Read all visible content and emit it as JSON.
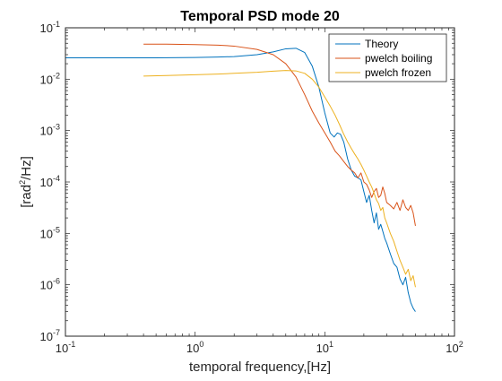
{
  "chart_data": {
    "type": "line",
    "title": "Temporal PSD mode 20",
    "xlabel": "temporal frequency,[Hz]",
    "ylabel": {
      "prefix": "[rad",
      "sup": "2",
      "suffix": "/Hz]"
    },
    "xscale": "log",
    "yscale": "log",
    "xlim": [
      0.1,
      100
    ],
    "ylim": [
      1e-07,
      0.1
    ],
    "x_ticks": [
      {
        "value": 0.1,
        "base": "10",
        "exp": "-1"
      },
      {
        "value": 1,
        "base": "10",
        "exp": "0"
      },
      {
        "value": 10,
        "base": "10",
        "exp": "1"
      },
      {
        "value": 100,
        "base": "10",
        "exp": "2"
      }
    ],
    "y_ticks": [
      {
        "value": 1e-07,
        "base": "10",
        "exp": "-7"
      },
      {
        "value": 1e-06,
        "base": "10",
        "exp": "-6"
      },
      {
        "value": 1e-05,
        "base": "10",
        "exp": "-5"
      },
      {
        "value": 0.0001,
        "base": "10",
        "exp": "-4"
      },
      {
        "value": 0.001,
        "base": "10",
        "exp": "-3"
      },
      {
        "value": 0.01,
        "base": "10",
        "exp": "-2"
      },
      {
        "value": 0.1,
        "base": "10",
        "exp": "-1"
      }
    ],
    "grid": false,
    "legend_position": "top-right",
    "series": [
      {
        "name": "Theory",
        "color": "#0072BD",
        "x": [
          0.1,
          0.2,
          0.5,
          1.0,
          1.5,
          2.0,
          3.0,
          4.0,
          5.0,
          6.0,
          7.0,
          8.0,
          9.0,
          10.0,
          11.0,
          11.8,
          12.5,
          13.2,
          14.0,
          15.0,
          16.0,
          17.0,
          18.0,
          19.0,
          20.0,
          21.0,
          22.0,
          23.0,
          24.0,
          25.0,
          26.0,
          27.0,
          28.0,
          29.0,
          30.0,
          32.0,
          34.0,
          36.0,
          38.0,
          40.0,
          42.0,
          44.0,
          46.0,
          48.0,
          50.0
        ],
        "y": [
          0.026,
          0.026,
          0.026,
          0.0265,
          0.027,
          0.0275,
          0.03,
          0.034,
          0.039,
          0.04,
          0.033,
          0.018,
          0.007,
          0.0022,
          0.0009,
          0.00075,
          0.0009,
          0.00085,
          0.0006,
          0.00028,
          0.00017,
          0.00013,
          0.00012,
          0.00011,
          6.5e-05,
          4e-05,
          5.5e-05,
          2.8e-05,
          1.6e-05,
          2.5e-05,
          1.2e-05,
          1.5e-05,
          1.1e-05,
          8e-06,
          6.5e-06,
          4e-06,
          2.6e-06,
          2.2e-06,
          1.3e-06,
          1e-06,
          1.4e-06,
          7e-07,
          4.5e-07,
          3.5e-07,
          3e-07
        ]
      },
      {
        "name": "pwelch boiling",
        "color": "#D95319",
        "x": [
          0.4,
          0.6,
          1.0,
          1.5,
          2.0,
          3.0,
          4.0,
          5.0,
          6.0,
          7.0,
          8.0,
          9.0,
          10.0,
          11.0,
          12.0,
          13.0,
          14.0,
          15.0,
          16.0,
          17.0,
          18.0,
          19.0,
          20.0,
          21.0,
          22.0,
          23.0,
          24.0,
          25.0,
          26.0,
          27.0,
          28.0,
          29.0,
          30.0,
          32.0,
          34.0,
          36.0,
          38.0,
          40.0,
          42.0,
          44.0,
          46.0,
          48.0,
          50.0
        ],
        "y": [
          0.048,
          0.048,
          0.047,
          0.046,
          0.044,
          0.038,
          0.03,
          0.02,
          0.011,
          0.005,
          0.0024,
          0.0014,
          0.0009,
          0.0006,
          0.0004,
          0.00032,
          0.00025,
          0.0002,
          0.00017,
          0.00015,
          0.00012,
          0.00015,
          0.0001,
          9e-05,
          7e-05,
          5e-05,
          6.5e-05,
          7.5e-05,
          5e-05,
          5.5e-05,
          8e-05,
          6e-05,
          4e-05,
          3.5e-05,
          3e-05,
          4e-05,
          2.8e-05,
          4.5e-05,
          3.2e-05,
          2.8e-05,
          3.5e-05,
          2.5e-05,
          1.4e-05
        ]
      },
      {
        "name": "pwelch frozen",
        "color": "#EDB120",
        "x": [
          0.4,
          0.6,
          1.0,
          1.5,
          2.0,
          3.0,
          4.0,
          5.0,
          6.0,
          7.0,
          8.0,
          9.0,
          10.0,
          11.0,
          12.0,
          13.0,
          14.0,
          15.0,
          16.0,
          17.0,
          18.0,
          19.0,
          20.0,
          21.0,
          22.0,
          23.0,
          24.0,
          25.0,
          26.0,
          27.0,
          28.0,
          29.0,
          30.0,
          32.0,
          34.0,
          36.0,
          38.0,
          40.0,
          42.0,
          44.0,
          46.0,
          48.0,
          50.0
        ],
        "y": [
          0.0115,
          0.0118,
          0.0122,
          0.0126,
          0.013,
          0.0136,
          0.0143,
          0.0148,
          0.0145,
          0.013,
          0.01,
          0.007,
          0.0045,
          0.003,
          0.002,
          0.0013,
          0.00085,
          0.0006,
          0.00045,
          0.00035,
          0.00028,
          0.00022,
          0.00017,
          0.00013,
          0.0001,
          8e-05,
          6e-05,
          4.5e-05,
          3.8e-05,
          2.8e-05,
          3.2e-05,
          2e-05,
          1.6e-05,
          1e-05,
          7e-06,
          4.5e-06,
          3e-06,
          2.2e-06,
          1.6e-06,
          2e-06,
          1.2e-06,
          1.5e-06,
          9e-07
        ]
      }
    ]
  }
}
